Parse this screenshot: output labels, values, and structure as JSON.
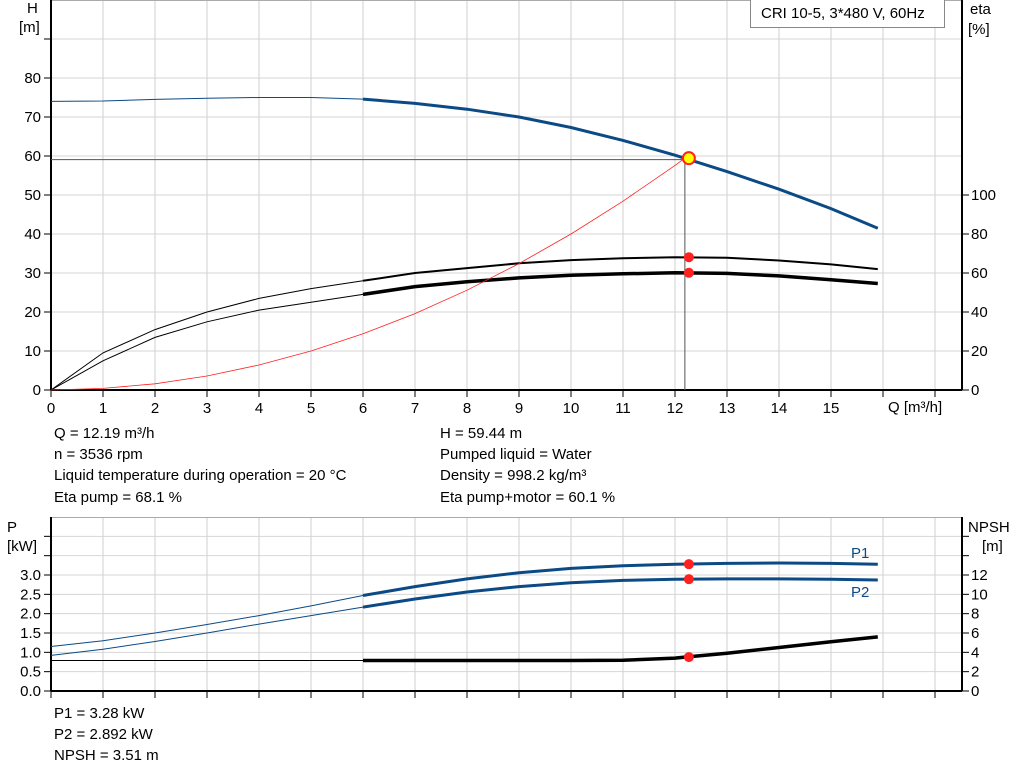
{
  "chart_data": [
    {
      "type": "line",
      "title": "CRI 10-5, 3*480 V, 60Hz",
      "xlabel": "Q [m³/h]",
      "ylabel_left": [
        "H",
        "[m]"
      ],
      "ylabel_right": [
        "eta",
        "[%]"
      ],
      "xlim": [
        0,
        17.5
      ],
      "ylim_left": [
        0,
        100
      ],
      "ylim_right": [
        0,
        200
      ],
      "x_ticks": [
        0,
        1,
        2,
        3,
        4,
        5,
        6,
        7,
        8,
        9,
        10,
        11,
        12,
        13,
        14,
        15
      ],
      "y_ticks_left": [
        0,
        10,
        20,
        30,
        40,
        50,
        60,
        70,
        80
      ],
      "y_ticks_right": [
        0,
        20,
        40,
        60,
        80,
        100
      ],
      "grid": true,
      "series": [
        {
          "axis": "left",
          "color": "#0b4a85",
          "x": [
            0,
            1,
            2,
            3,
            4,
            5,
            6,
            7,
            8,
            9,
            10,
            11,
            12,
            13,
            14,
            15,
            15.9
          ],
          "y": [
            74,
            74.1,
            74.5,
            74.8,
            75,
            75,
            74.6,
            73.5,
            72,
            70,
            67.3,
            64,
            60.2,
            56,
            51.5,
            46.5,
            41.5
          ],
          "thick_from": 6
        },
        {
          "axis": "right",
          "color": "#000000",
          "x": [
            0,
            1,
            2,
            3,
            4,
            5,
            6,
            7,
            8,
            9,
            10,
            11,
            12,
            13,
            14,
            15,
            15.9
          ],
          "y": [
            0,
            19,
            31,
            40,
            47,
            52,
            56,
            60,
            62.5,
            65,
            66.6,
            67.6,
            68.1,
            67.8,
            66.4,
            64.4,
            62
          ],
          "thick_from": 6
        },
        {
          "axis": "right",
          "color": "#000000",
          "x": [
            0,
            1,
            2,
            3,
            4,
            5,
            6,
            7,
            8,
            9,
            10,
            11,
            12,
            13,
            14,
            15,
            15.9
          ],
          "y": [
            0,
            15,
            27,
            35,
            41,
            45,
            49,
            53,
            55.5,
            57.5,
            58.8,
            59.6,
            60.1,
            59.8,
            58.5,
            56.5,
            54.6
          ],
          "thick_from": 6,
          "heavy": true
        },
        {
          "axis": "left",
          "color": "#ff2020",
          "x": [
            0,
            1,
            2,
            3,
            4,
            5,
            6,
            7,
            8,
            9,
            10,
            11,
            12,
            12.19
          ],
          "y": [
            0,
            0.4,
            1.6,
            3.6,
            6.4,
            10,
            14.4,
            19.6,
            25.6,
            32.4,
            40,
            48.4,
            57.6,
            59.44
          ],
          "system": true
        }
      ],
      "operating_point": {
        "q": 12.19,
        "h": 59.44,
        "eta_pump": 68.1,
        "eta_total": 60.1
      }
    },
    {
      "type": "line",
      "ylabel_left": [
        "P",
        "[kW]"
      ],
      "ylabel_right": [
        "NPSH",
        "[m]"
      ],
      "xlim": [
        0,
        17.5
      ],
      "ylim_left": [
        0,
        4.5
      ],
      "ylim_right": [
        0,
        18
      ],
      "y_ticks_left": [
        "0.0",
        "0.5",
        "1.0",
        "1.5",
        "2.0",
        "2.5",
        "3.0"
      ],
      "y_ticks_right": [
        0,
        2,
        4,
        6,
        8,
        10,
        12
      ],
      "grid": true,
      "series": [
        {
          "name": "P1",
          "axis": "left",
          "color": "#0b4a85",
          "x": [
            0,
            1,
            2,
            3,
            4,
            5,
            6,
            7,
            8,
            9,
            10,
            11,
            12,
            13,
            14,
            15,
            15.9
          ],
          "y": [
            1.15,
            1.3,
            1.5,
            1.72,
            1.95,
            2.2,
            2.47,
            2.7,
            2.9,
            3.06,
            3.17,
            3.24,
            3.28,
            3.3,
            3.31,
            3.3,
            3.28
          ],
          "thick_from": 6
        },
        {
          "name": "P2",
          "axis": "left",
          "color": "#0b4a85",
          "x": [
            0,
            1,
            2,
            3,
            4,
            5,
            6,
            7,
            8,
            9,
            10,
            11,
            12,
            13,
            14,
            15,
            15.9
          ],
          "y": [
            0.92,
            1.08,
            1.28,
            1.5,
            1.73,
            1.95,
            2.17,
            2.38,
            2.56,
            2.7,
            2.8,
            2.86,
            2.89,
            2.9,
            2.9,
            2.89,
            2.87
          ],
          "thick_from": 6
        },
        {
          "axis": "right",
          "color": "#000000",
          "x": [
            0,
            1,
            2,
            3,
            4,
            5,
            6,
            7,
            8,
            9,
            10,
            11,
            12,
            12.19,
            13,
            14,
            15,
            15.9
          ],
          "y": [
            3.15,
            3.15,
            3.15,
            3.15,
            3.15,
            3.15,
            3.15,
            3.15,
            3.15,
            3.15,
            3.15,
            3.18,
            3.4,
            3.51,
            3.9,
            4.5,
            5.1,
            5.6
          ],
          "thick_from": 6,
          "heavy": true
        }
      ],
      "operating_point": {
        "q": 12.19,
        "p1": 3.28,
        "p2": 2.892,
        "npsh": 3.51
      }
    }
  ],
  "info_top": {
    "left": [
      "Q = 12.19 m³/h",
      "n = 3536 rpm",
      "Liquid temperature during operation = 20 °C",
      "Eta pump = 68.1 %"
    ],
    "right": [
      "H = 59.44 m",
      "Pumped liquid = Water",
      "Density = 998.2 kg/m³",
      "Eta pump+motor = 60.1 %"
    ]
  },
  "info_bottom": [
    "P1 = 3.28 kW",
    "P2 = 2.892 kW",
    "NPSH = 3.51 m"
  ]
}
